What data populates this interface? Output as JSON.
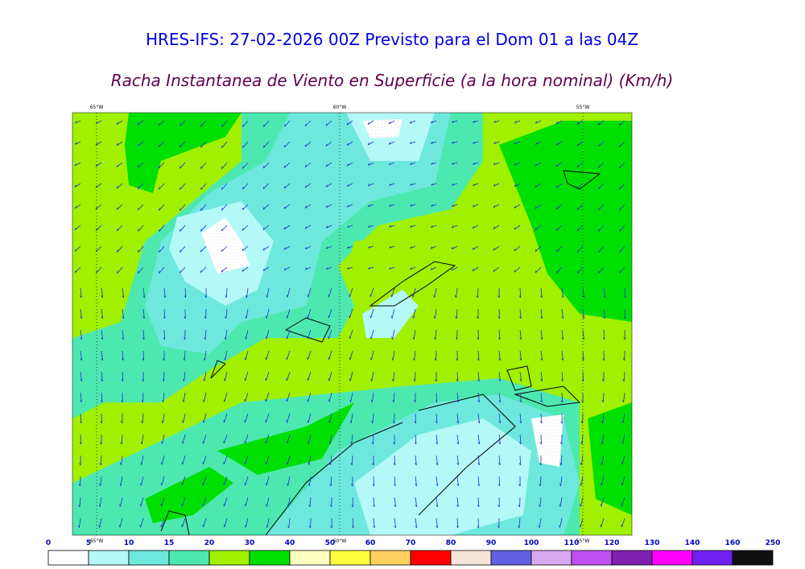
{
  "header": {
    "title": "HRES-IFS: 27-02-2026 00Z Previsto para el Dom 01 a las 04Z",
    "subtitle": "Racha Instantanea de Viento en Superficie (a la hora nominal) (Km/h)"
  },
  "map": {
    "lon_labels": [
      "65°W",
      "60°W",
      "55°W"
    ]
  },
  "colorbar": {
    "labels": [
      0,
      5,
      10,
      15,
      20,
      30,
      40,
      50,
      60,
      70,
      80,
      90,
      100,
      110,
      120,
      130,
      140,
      160,
      250
    ],
    "colors": [
      "#ffffff",
      "#b4f8f8",
      "#6ee8dc",
      "#4de8b0",
      "#a0f000",
      "#00e000",
      "#ffffc0",
      "#ffff40",
      "#ffd060",
      "#ff0000",
      "#f5e6d8",
      "#6060e0",
      "#d8a8f0",
      "#c050f0",
      "#8020b0",
      "#ff00ff",
      "#7020f0",
      "#101010"
    ]
  }
}
